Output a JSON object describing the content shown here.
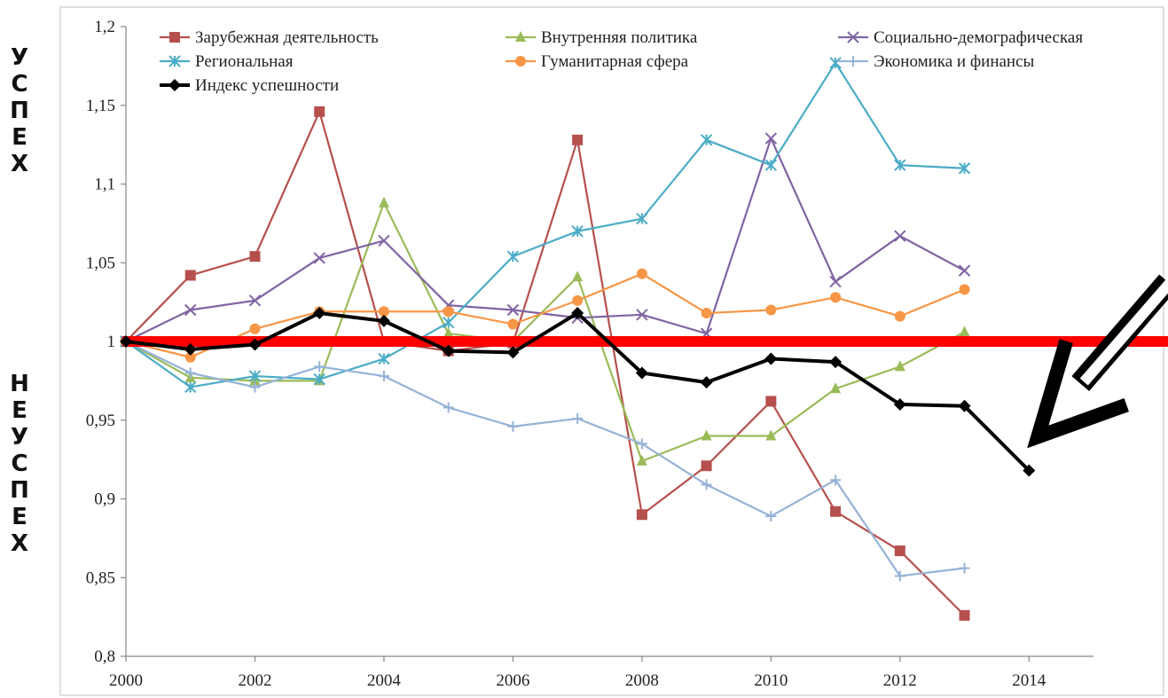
{
  "side_labels": {
    "top": "УСПЕХ",
    "bottom": "НЕУСПЕХ"
  },
  "chart_data": {
    "type": "line",
    "title": "",
    "xlabel": "",
    "ylabel": "",
    "xlim": [
      2000,
      2015
    ],
    "ylim": [
      0.8,
      1.2
    ],
    "x_ticks": [
      2000,
      2002,
      2004,
      2006,
      2008,
      2010,
      2012,
      2014
    ],
    "y_ticks": [
      0.8,
      0.85,
      0.9,
      0.95,
      1.0,
      1.05,
      1.1,
      1.15,
      1.2
    ],
    "y_tick_labels": [
      "0,8",
      "0,85",
      "0,9",
      "0,95",
      "1",
      "1,05",
      "1,1",
      "1,15",
      "1,2"
    ],
    "grid": false,
    "legend_position": "top",
    "reference_line": {
      "y": 1.0,
      "color": "#ff0000"
    },
    "arrow": {
      "color": "#000000",
      "points_to": [
        2014,
        0.918
      ]
    },
    "series": [
      {
        "name": "Зарубежная деятельность",
        "color": "#b5504d",
        "marker": "square",
        "x": [
          2000,
          2001,
          2002,
          2003,
          2004,
          2005,
          2006,
          2007,
          2008,
          2009,
          2010,
          2011,
          2012,
          2013
        ],
        "y": [
          1.0,
          1.042,
          1.054,
          1.146,
          1.0,
          0.994,
          0.999,
          1.128,
          0.89,
          0.921,
          0.962,
          0.892,
          0.867,
          0.826
        ]
      },
      {
        "name": "Внутренняя политика",
        "color": "#9bbb59",
        "marker": "triangle",
        "x": [
          2000,
          2001,
          2002,
          2003,
          2004,
          2005,
          2006,
          2007,
          2008,
          2009,
          2010,
          2011,
          2012,
          2013
        ],
        "y": [
          1.0,
          0.977,
          0.975,
          0.975,
          1.088,
          1.005,
          1.0,
          1.041,
          0.924,
          0.94,
          0.94,
          0.97,
          0.984,
          1.006
        ]
      },
      {
        "name": "Социально-демографическая",
        "color": "#8064a2",
        "marker": "x",
        "x": [
          2000,
          2001,
          2002,
          2003,
          2004,
          2005,
          2006,
          2007,
          2008,
          2009,
          2010,
          2011,
          2012,
          2013
        ],
        "y": [
          1.0,
          1.02,
          1.026,
          1.053,
          1.064,
          1.023,
          1.02,
          1.015,
          1.017,
          1.005,
          1.129,
          1.038,
          1.067,
          1.045
        ]
      },
      {
        "name": "Региональная",
        "color": "#4bacc6",
        "marker": "star",
        "x": [
          2000,
          2001,
          2002,
          2003,
          2004,
          2005,
          2006,
          2007,
          2008,
          2009,
          2010,
          2011,
          2012,
          2013
        ],
        "y": [
          1.0,
          0.971,
          0.978,
          0.976,
          0.989,
          1.012,
          1.054,
          1.07,
          1.078,
          1.128,
          1.112,
          1.177,
          1.112,
          1.11
        ]
      },
      {
        "name": "Гуманитарная сфера",
        "color": "#f79646",
        "marker": "circle",
        "x": [
          2000,
          2001,
          2002,
          2003,
          2004,
          2005,
          2006,
          2007,
          2008,
          2009,
          2010,
          2011,
          2012,
          2013
        ],
        "y": [
          1.0,
          0.99,
          1.008,
          1.019,
          1.019,
          1.019,
          1.011,
          1.026,
          1.043,
          1.018,
          1.02,
          1.028,
          1.016,
          1.033
        ]
      },
      {
        "name": "Экономика и финансы",
        "color": "#95b3d7",
        "marker": "plus",
        "x": [
          2000,
          2001,
          2002,
          2003,
          2004,
          2005,
          2006,
          2007,
          2008,
          2009,
          2010,
          2011,
          2012,
          2013
        ],
        "y": [
          1.0,
          0.98,
          0.971,
          0.984,
          0.978,
          0.958,
          0.946,
          0.951,
          0.935,
          0.909,
          0.889,
          0.912,
          0.851,
          0.856
        ]
      },
      {
        "name": "Индекс успешности",
        "color": "#000000",
        "marker": "diamond",
        "bold": true,
        "x": [
          2000,
          2001,
          2002,
          2003,
          2004,
          2005,
          2006,
          2007,
          2008,
          2009,
          2010,
          2011,
          2012,
          2013,
          2014
        ],
        "y": [
          1.0,
          0.995,
          0.998,
          1.018,
          1.013,
          0.994,
          0.993,
          1.018,
          0.98,
          0.974,
          0.989,
          0.987,
          0.96,
          0.959,
          0.918
        ]
      }
    ]
  }
}
